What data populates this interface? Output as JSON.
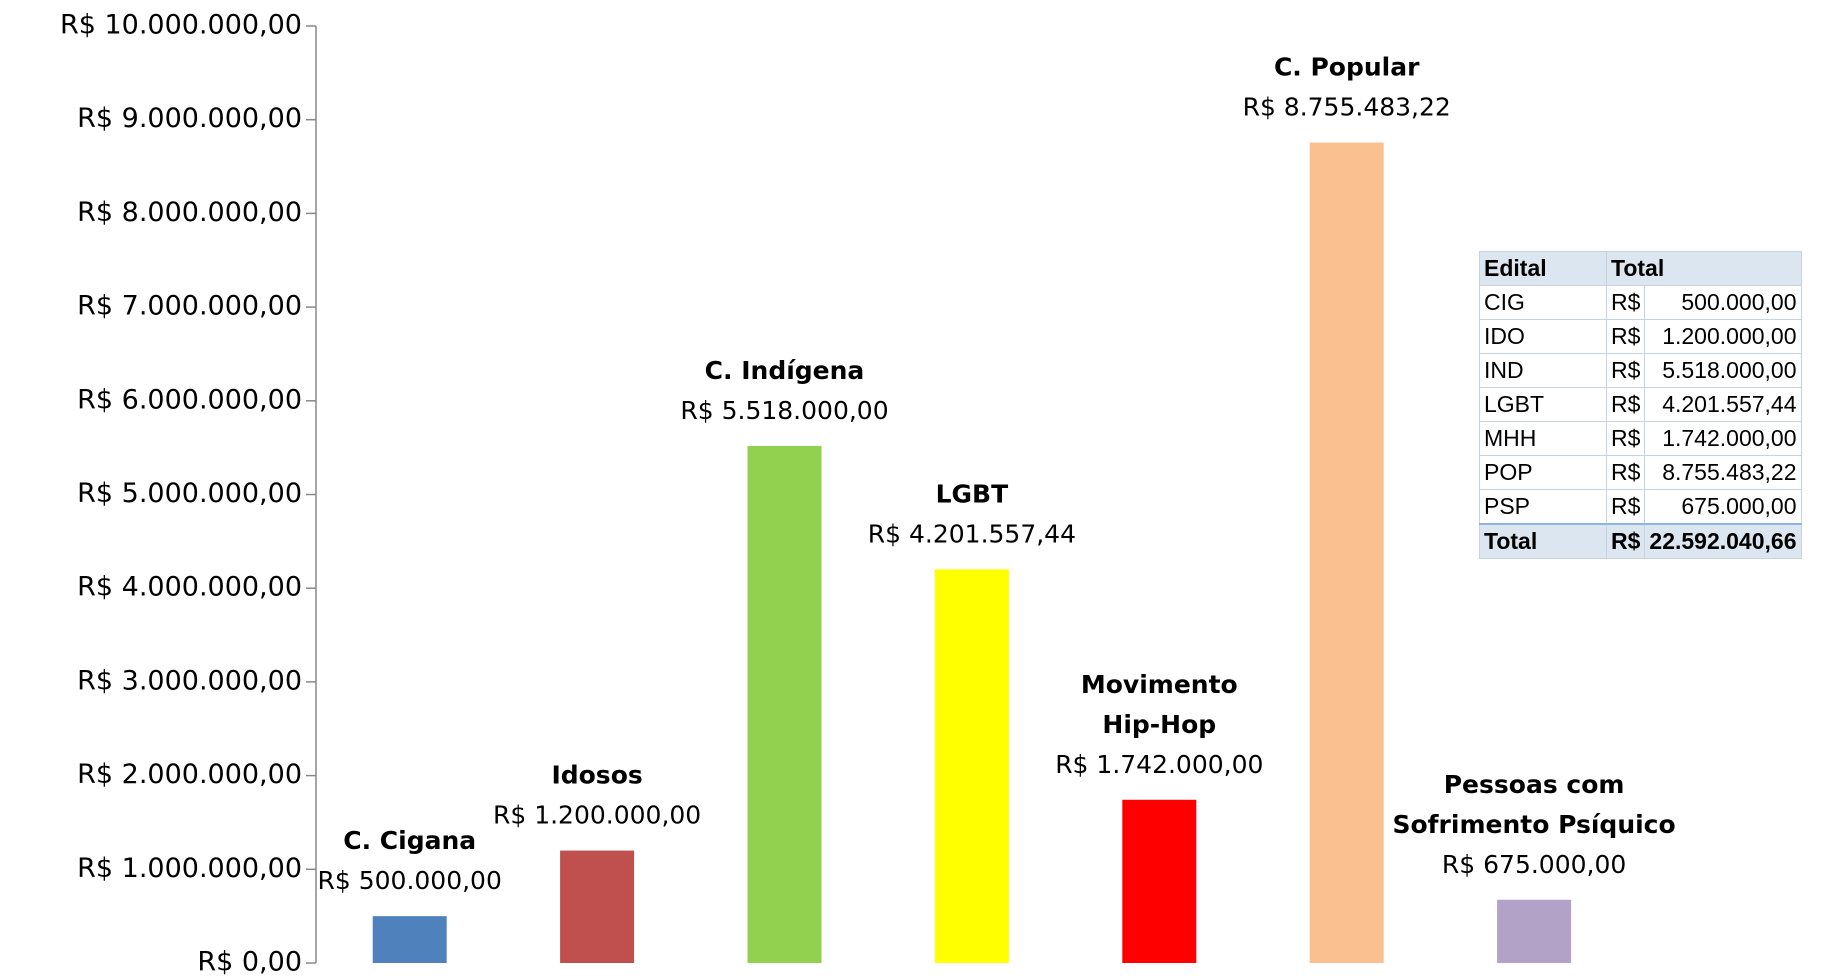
{
  "chart_data": {
    "type": "bar",
    "categories": [
      [
        "C. Cigana"
      ],
      [
        "Idosos"
      ],
      [
        "C. Indígena"
      ],
      [
        "LGBT"
      ],
      [
        "Movimento",
        "Hip-Hop"
      ],
      [
        "C. Popular"
      ],
      [
        "Pessoas com",
        "Sofrimento Psíquico"
      ]
    ],
    "values": [
      500000.0,
      1200000.0,
      5518000.0,
      4201557.44,
      1742000.0,
      8755483.22,
      675000.0
    ],
    "value_labels": [
      "R$ 500.000,00",
      "R$ 1.200.000,00",
      "R$ 5.518.000,00",
      "R$ 4.201.557,44",
      "R$ 1.742.000,00",
      "R$ 8.755.483,22",
      "R$ 675.000,00"
    ],
    "colors": [
      "#4f81bd",
      "#c0504d",
      "#92d050",
      "#ffff00",
      "#ff0000",
      "#fac090",
      "#b3a2c7"
    ],
    "ylim": [
      0,
      10000000
    ],
    "yticks": [
      {
        "value": 0,
        "label": "R$ 0,00"
      },
      {
        "value": 1000000,
        "label": "R$ 1.000.000,00"
      },
      {
        "value": 2000000,
        "label": "R$ 2.000.000,00"
      },
      {
        "value": 3000000,
        "label": "R$ 3.000.000,00"
      },
      {
        "value": 4000000,
        "label": "R$ 4.000.000,00"
      },
      {
        "value": 5000000,
        "label": "R$ 5.000.000,00"
      },
      {
        "value": 6000000,
        "label": "R$ 6.000.000,00"
      },
      {
        "value": 7000000,
        "label": "R$ 7.000.000,00"
      },
      {
        "value": 8000000,
        "label": "R$ 8.000.000,00"
      },
      {
        "value": 9000000,
        "label": "R$ 9.000.000,00"
      },
      {
        "value": 10000000,
        "label": "R$ 10.000.000,00"
      }
    ],
    "grid": false
  },
  "table": {
    "header": [
      "Edital",
      "Total"
    ],
    "rows": [
      [
        "CIG",
        "R$",
        "500.000,00"
      ],
      [
        "IDO",
        "R$",
        "1.200.000,00"
      ],
      [
        "IND",
        "R$",
        "5.518.000,00"
      ],
      [
        "LGBT",
        "R$",
        "4.201.557,44"
      ],
      [
        "MHH",
        "R$",
        "1.742.000,00"
      ],
      [
        "POP",
        "R$",
        "8.755.483,22"
      ],
      [
        "PSP",
        "R$",
        "675.000,00"
      ]
    ],
    "total": [
      "Total",
      "R$",
      "22.592.040,66"
    ]
  }
}
